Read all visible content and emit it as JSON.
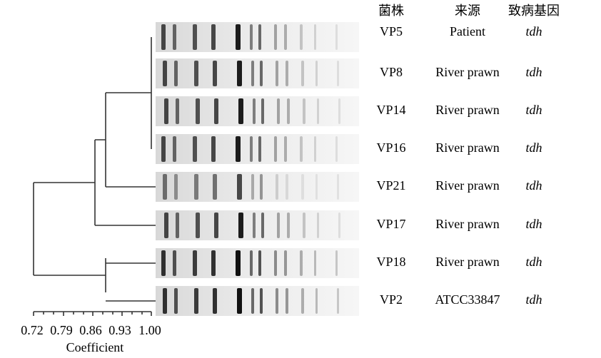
{
  "header": {
    "strain": "菌株",
    "source": "来源",
    "gene": "致病基因"
  },
  "rows": [
    [
      "VP5",
      "Patient",
      "tdh"
    ],
    [
      "VP8",
      "River prawn",
      "tdh"
    ],
    [
      "VP14",
      "River prawn",
      "tdh"
    ],
    [
      "VP16",
      "River prawn",
      "tdh"
    ],
    [
      "VP21",
      "River prawn",
      "tdh"
    ],
    [
      "VP17",
      "River prawn",
      "tdh"
    ],
    [
      "VP18",
      "River prawn",
      "tdh"
    ],
    [
      "VP2",
      "ATCC33847",
      "tdh"
    ]
  ],
  "axis": {
    "ticks": [
      "0.72",
      "0.79",
      "0.86",
      "0.93",
      "1.00"
    ],
    "label": "Coefficient"
  }
}
